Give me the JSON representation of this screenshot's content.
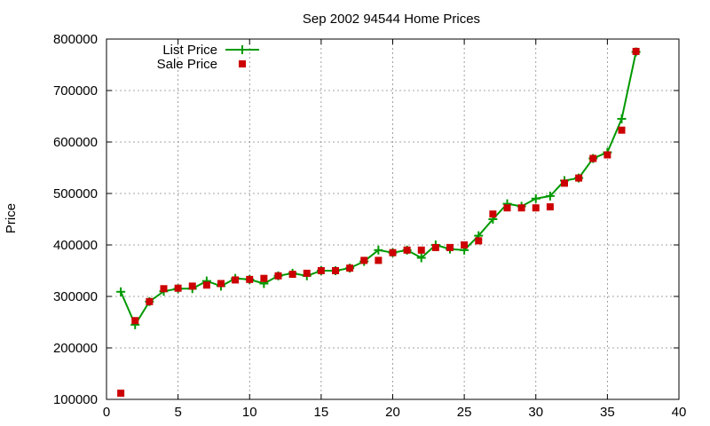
{
  "chart_data": {
    "type": "line",
    "title": "Sep 2002 94544 Home Prices",
    "xlabel": "",
    "ylabel": "Price",
    "xlim": [
      0,
      40
    ],
    "ylim": [
      100000,
      800000
    ],
    "x_ticks": [
      0,
      5,
      10,
      15,
      20,
      25,
      30,
      35,
      40
    ],
    "y_ticks": [
      100000,
      200000,
      300000,
      400000,
      500000,
      600000,
      700000,
      800000
    ],
    "grid": true,
    "legend_position": "top-left",
    "series": [
      {
        "name": "List Price",
        "style": "line+cross",
        "color": "#009900",
        "x": [
          1,
          2,
          3,
          4,
          5,
          6,
          7,
          8,
          9,
          10,
          11,
          12,
          13,
          14,
          15,
          16,
          17,
          18,
          19,
          20,
          21,
          22,
          23,
          24,
          25,
          26,
          27,
          28,
          29,
          30,
          31,
          32,
          33,
          34,
          35,
          36,
          37
        ],
        "values": [
          309000,
          245000,
          290000,
          310000,
          315000,
          315000,
          330000,
          320000,
          335000,
          333000,
          325000,
          340000,
          345000,
          340000,
          350000,
          350000,
          355000,
          368000,
          390000,
          385000,
          390000,
          375000,
          400000,
          392000,
          390000,
          418000,
          450000,
          480000,
          475000,
          490000,
          495000,
          525000,
          530000,
          568000,
          580000,
          645000,
          775000
        ]
      },
      {
        "name": "Sale Price",
        "style": "square",
        "color": "#cc0000",
        "x": [
          1,
          2,
          3,
          4,
          5,
          6,
          7,
          8,
          9,
          10,
          11,
          12,
          13,
          14,
          15,
          16,
          17,
          18,
          19,
          20,
          21,
          22,
          23,
          24,
          25,
          26,
          27,
          28,
          29,
          30,
          31,
          32,
          33,
          34,
          35,
          36,
          37
        ],
        "values": [
          112000,
          253000,
          290000,
          315000,
          316000,
          320000,
          322000,
          325000,
          332000,
          333000,
          335000,
          340000,
          343000,
          345000,
          350000,
          350000,
          355000,
          370000,
          370000,
          385000,
          390000,
          390000,
          395000,
          395000,
          400000,
          408000,
          460000,
          472000,
          472000,
          472000,
          474000,
          520000,
          530000,
          568000,
          575000,
          623000,
          776000
        ]
      }
    ]
  }
}
